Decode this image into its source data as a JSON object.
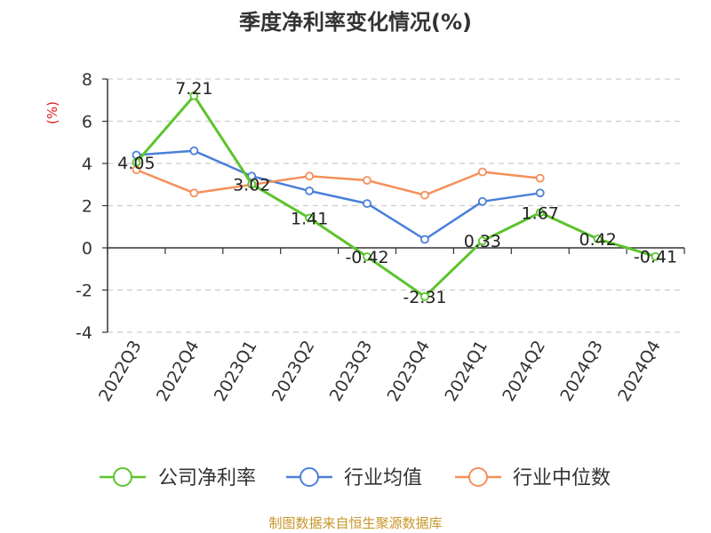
{
  "chart_data": {
    "type": "line",
    "title": "季度净利率变化情况(%)",
    "ylabel": "(%)",
    "xlabel": "",
    "categories": [
      "2022Q3",
      "2022Q4",
      "2023Q1",
      "2023Q2",
      "2023Q3",
      "2023Q4",
      "2024Q1",
      "2024Q2",
      "2024Q3",
      "2024Q4"
    ],
    "ylim": [
      -4,
      8
    ],
    "yticks": [
      8,
      6,
      4,
      2,
      0,
      -2,
      -4
    ],
    "grid": true,
    "legend": "bottom",
    "series": [
      {
        "name": "公司净利率",
        "color": "#5cc42c",
        "values": [
          4.05,
          7.21,
          3.02,
          1.41,
          -0.42,
          -2.31,
          0.33,
          1.67,
          0.42,
          -0.41
        ],
        "labels": [
          "4.05",
          "7.21",
          "3.02",
          "1.41",
          "-0.42",
          "-2.31",
          "0.33",
          "1.67",
          "0.42",
          "-0.41"
        ]
      },
      {
        "name": "行业均值",
        "color": "#4a7fd9",
        "values": [
          4.4,
          4.6,
          3.4,
          2.7,
          2.1,
          0.4,
          2.2,
          2.6,
          null,
          null
        ]
      },
      {
        "name": "行业中位数",
        "color": "#f58f5a",
        "values": [
          3.7,
          2.6,
          3.0,
          3.4,
          3.2,
          2.5,
          3.6,
          3.3,
          null,
          null
        ]
      }
    ],
    "source": "制图数据来自恒生聚源数据库"
  }
}
